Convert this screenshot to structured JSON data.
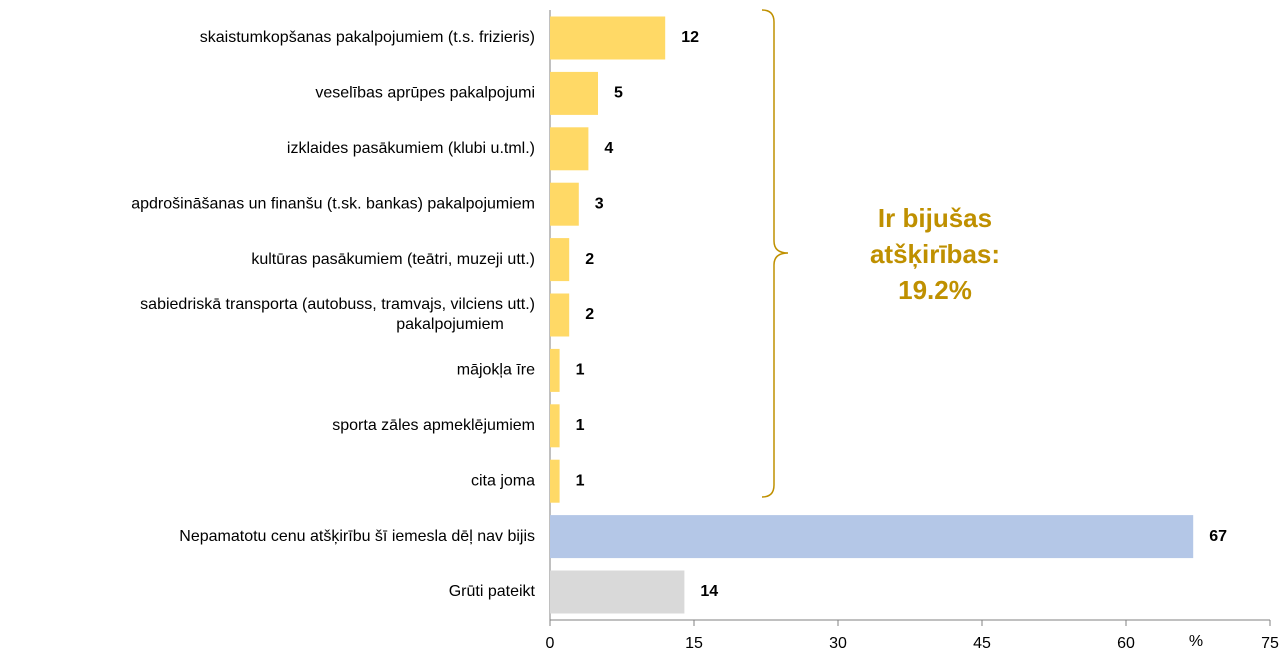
{
  "chart_data": {
    "type": "hbar",
    "categories": [
      "skaistumkopšanas pakalpojumiem (t.s. frizieris)",
      "veselības aprūpes pakalpojumi",
      "izklaides pasākumiem (klubi u.tml.)",
      "apdrošināšanas un finanšu (t.sk. bankas) pakalpojumiem",
      "kultūras pasākumiem (teātri, muzeji utt.)",
      [
        "sabiedriskā transporta (autobuss, tramvajs, vilciens utt.)",
        "pakalpojumiem"
      ],
      "mājokļa īre",
      "sporta zāles apmeklējumiem",
      "cita joma",
      "Nepamatotu cenu atšķirību šī iemesla dēļ nav bijis",
      "Grūti pateikt"
    ],
    "values": [
      12,
      5,
      4,
      3,
      2,
      2,
      1,
      1,
      1,
      67,
      14
    ],
    "colors": [
      "#ffd966",
      "#ffd966",
      "#ffd966",
      "#ffd966",
      "#ffd966",
      "#ffd966",
      "#ffd966",
      "#ffd966",
      "#ffd966",
      "#b4c7e7",
      "#d9d9d9"
    ],
    "xlim": [
      0,
      75
    ],
    "xticks": [
      0,
      15,
      30,
      45,
      60,
      75
    ],
    "x_unit": "%",
    "annotation": [
      "Ir bijušas",
      "atšķirības:",
      "19.2%"
    ],
    "annotation_color": "#bf9000"
  }
}
